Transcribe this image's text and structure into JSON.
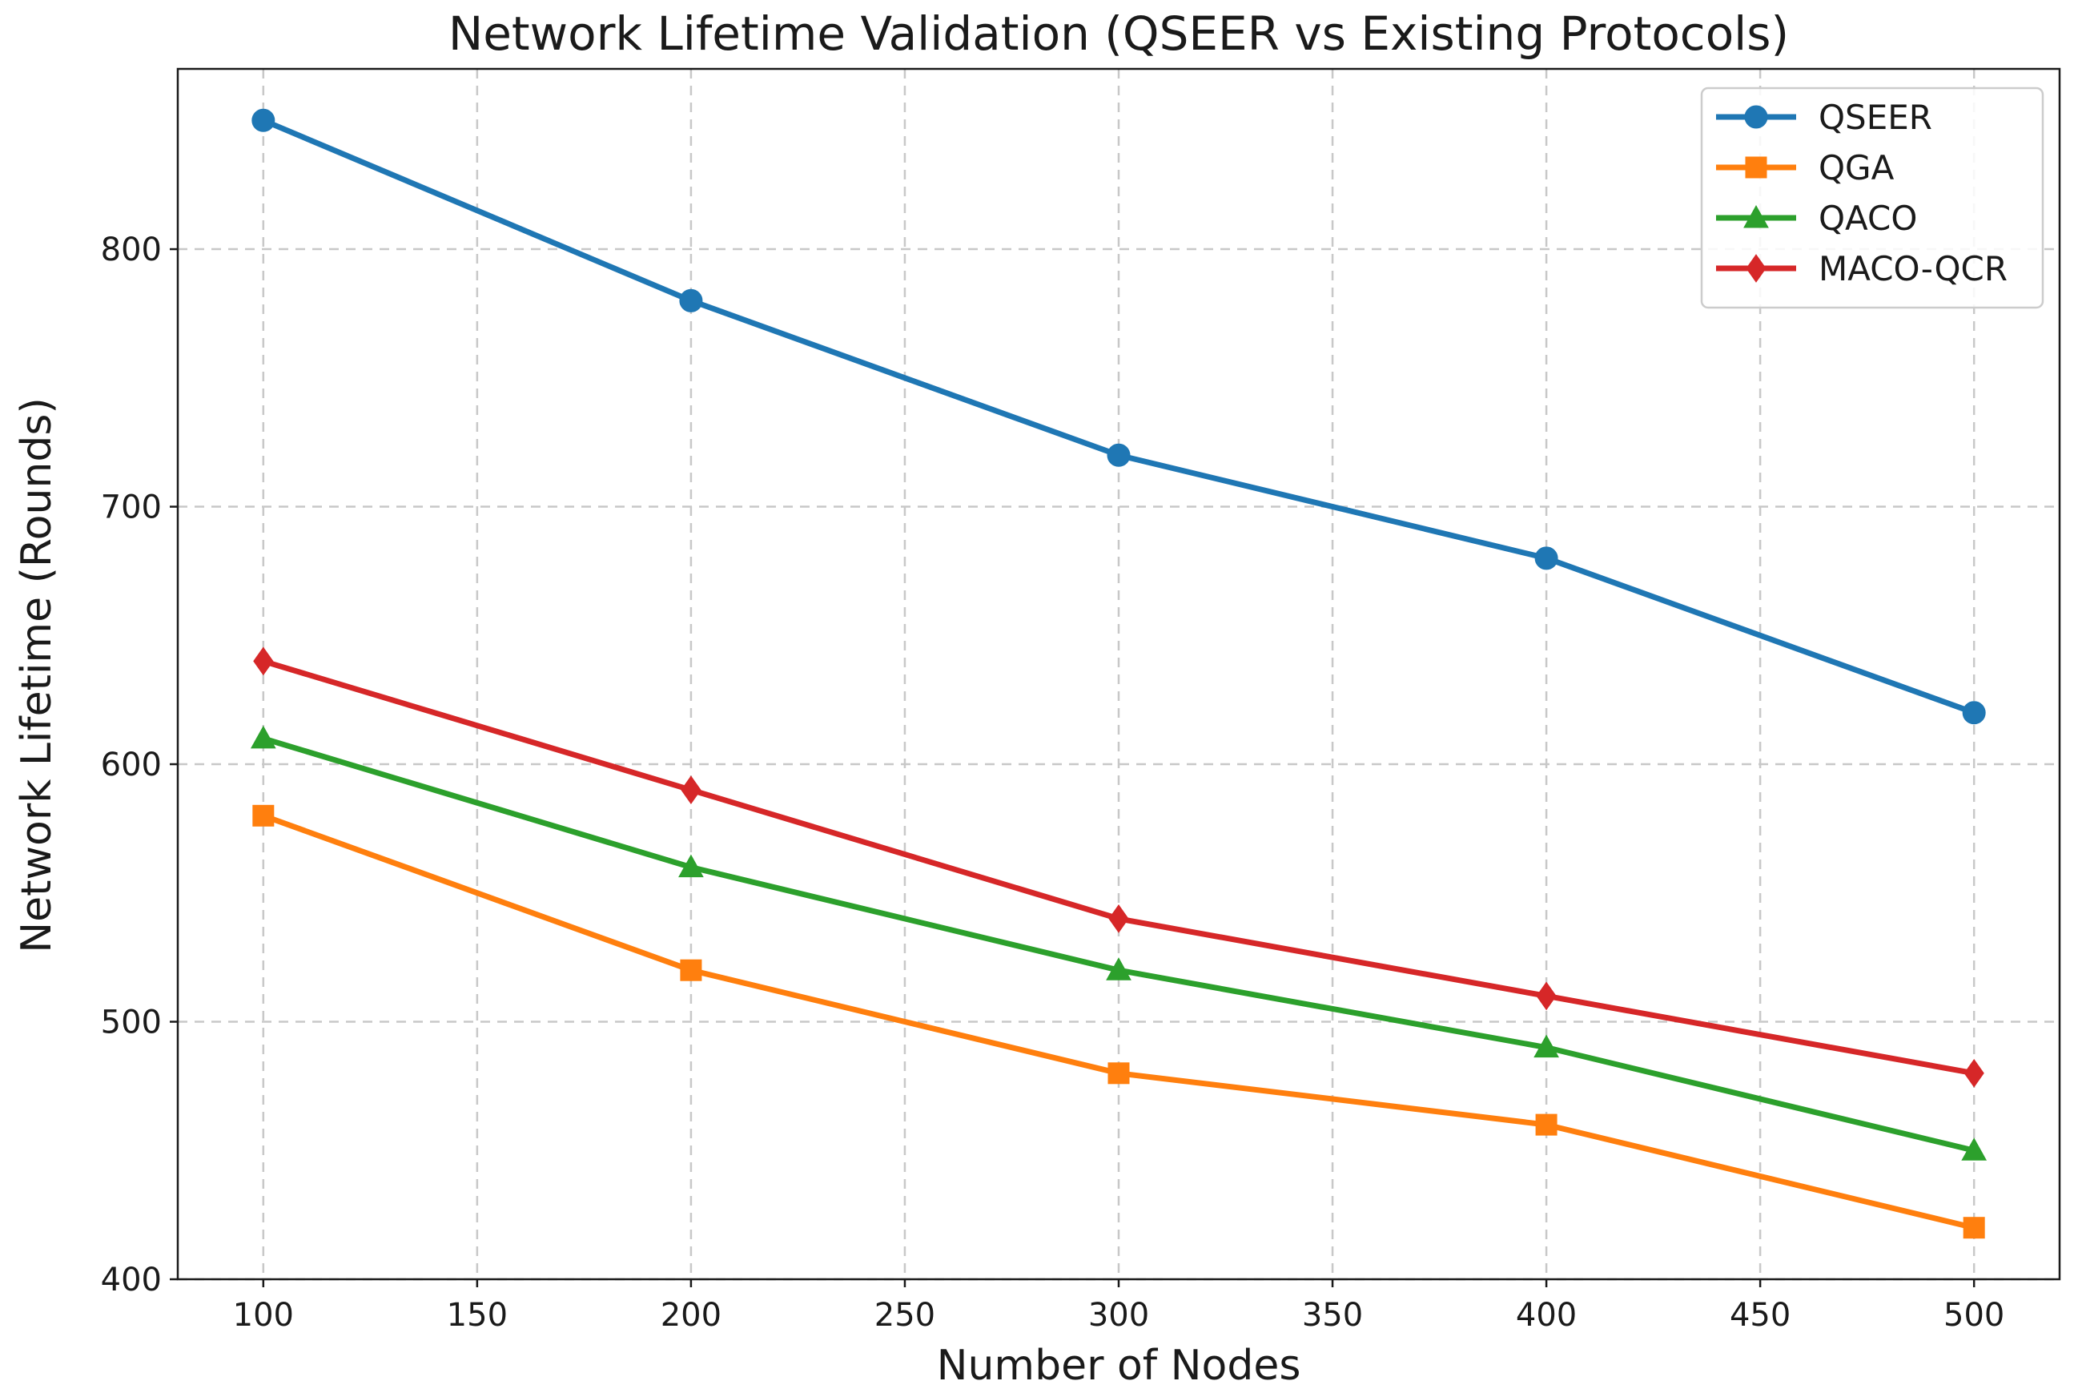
{
  "chart_data": {
    "type": "line",
    "title": "Network Lifetime Validation (QSEER vs Existing Protocols)",
    "xlabel": "Number of Nodes",
    "ylabel": "Network Lifetime (Rounds)",
    "x": [
      100,
      200,
      300,
      400,
      500
    ],
    "xlim": [
      80,
      520
    ],
    "ylim": [
      400,
      870
    ],
    "xticks": [
      100,
      150,
      200,
      250,
      300,
      350,
      400,
      450,
      500
    ],
    "yticks": [
      400,
      500,
      600,
      700,
      800
    ],
    "grid": true,
    "legend_position": "top-right",
    "series": [
      {
        "name": "QSEER",
        "marker": "circle",
        "color": "#1f77b4",
        "values": [
          850,
          780,
          720,
          680,
          620
        ]
      },
      {
        "name": "QGA",
        "marker": "square",
        "color": "#ff7f0e",
        "values": [
          580,
          520,
          480,
          460,
          420
        ]
      },
      {
        "name": "QACO",
        "marker": "triangle",
        "color": "#2ca02c",
        "values": [
          610,
          560,
          520,
          490,
          450
        ]
      },
      {
        "name": "MACO-QCR",
        "marker": "diamond",
        "color": "#d62728",
        "values": [
          640,
          590,
          540,
          510,
          480
        ]
      }
    ]
  }
}
